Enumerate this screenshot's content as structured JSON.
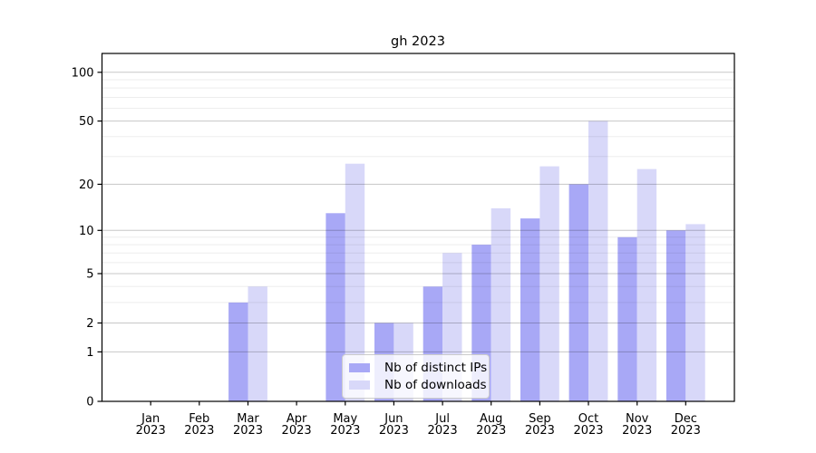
{
  "title": "gh 2023",
  "chart_data": {
    "type": "bar",
    "title": "gh 2023",
    "categories": [
      "Jan",
      "Feb",
      "Mar",
      "Apr",
      "May",
      "Jun",
      "Jul",
      "Aug",
      "Sep",
      "Oct",
      "Nov",
      "Dec"
    ],
    "category_year": "2023",
    "series": [
      {
        "name": "Nb of distinct IPs",
        "color": "#a8a8f6",
        "values": [
          0,
          0,
          3,
          0,
          13,
          2,
          4,
          8,
          12,
          20,
          9,
          10
        ]
      },
      {
        "name": "Nb of downloads",
        "color": "#d8d8f9",
        "values": [
          0,
          0,
          4,
          0,
          27,
          2,
          7,
          14,
          26,
          50,
          25,
          11
        ]
      }
    ],
    "yscale": "log1p",
    "ylim": [
      0,
      100
    ],
    "yticks_major": [
      0,
      1,
      2,
      5,
      10,
      20,
      50,
      100
    ],
    "yticks_minor": [
      3,
      4,
      6,
      7,
      8,
      9,
      30,
      40,
      60,
      70,
      80,
      90
    ],
    "grid": true,
    "legend_position": "lower center",
    "axis_color": "#000000",
    "grid_major_color": "rgba(0,0,0,0.22)",
    "grid_minor_color": "rgba(0,0,0,0.07)"
  }
}
